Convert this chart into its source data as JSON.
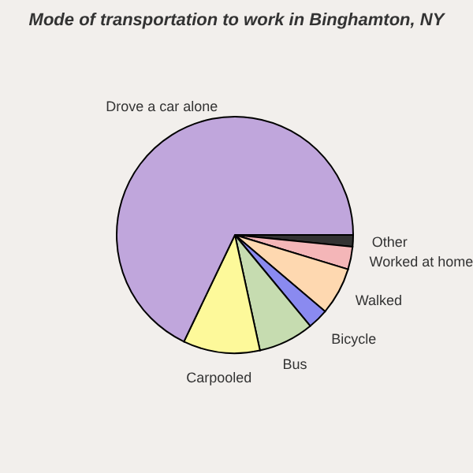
{
  "chart_data": {
    "type": "pie",
    "title": "Mode of transportation to work in Binghamton, NY",
    "categories": [
      "Other",
      "Worked at home",
      "Walked",
      "Bicycle",
      "Bus",
      "Carpooled",
      "Drove a car alone"
    ],
    "values": [
      1.6,
      3.1,
      6.5,
      2.8,
      7.6,
      10.5,
      67.9
    ],
    "colors": [
      "#333333",
      "#f4b6b8",
      "#fed8b0",
      "#8a8af0",
      "#c6dcb0",
      "#fdf99a",
      "#c0a6dc"
    ]
  }
}
